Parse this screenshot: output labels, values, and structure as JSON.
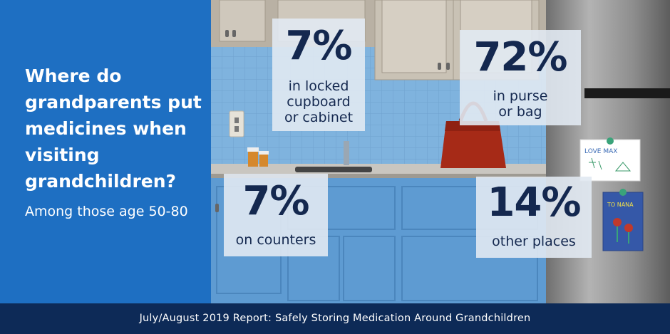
{
  "headline": "Where do grandparents put medicines when visiting grandchildren?",
  "subheadline": "Among those age 50-80",
  "stats": [
    {
      "value": "7%",
      "label_lines": [
        "in locked",
        "cupboard",
        "or cabinet"
      ]
    },
    {
      "value": "72%",
      "label_lines": [
        "in purse",
        "or bag"
      ]
    },
    {
      "value": "7%",
      "label_lines": [
        "on counters"
      ]
    },
    {
      "value": "14%",
      "label_lines": [
        "other places"
      ]
    }
  ],
  "drawings": {
    "note_1_text": "LOVE MAX",
    "note_2_text": "TO NANA"
  },
  "footer": "July/August 2019 Report: Safely Storing Medication Around Grandchildren",
  "colors": {
    "left_panel": "#1e6fc2",
    "footer": "#0d2a57",
    "stat_text": "#14284f",
    "backsplash": "#7fb3de",
    "cabinet_lower": "#5e9bd2",
    "cabinet_upper": "#cfc8bc",
    "purse": "#a62a17",
    "fridge": "#8a8a8a"
  }
}
